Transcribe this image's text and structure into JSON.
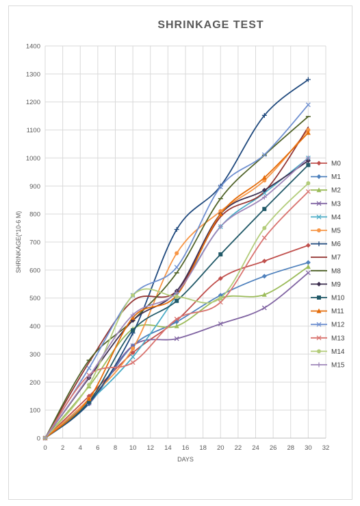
{
  "chart_data": {
    "type": "line",
    "title": "SHRINKAGE TEST",
    "xlabel": "DAYS",
    "ylabel": "SHRINKAGE(*10-6 M)",
    "xlim": [
      0,
      32
    ],
    "ylim": [
      0,
      1400
    ],
    "xticks": [
      0,
      2,
      4,
      6,
      8,
      10,
      12,
      14,
      16,
      18,
      20,
      22,
      24,
      26,
      28,
      30,
      32
    ],
    "yticks": [
      0,
      100,
      200,
      300,
      400,
      500,
      600,
      700,
      800,
      900,
      1000,
      1100,
      1200,
      1300,
      1400
    ],
    "grid": true,
    "smooth": true,
    "legend": "right",
    "x": [
      0,
      5,
      10,
      15,
      20,
      25,
      30
    ],
    "series": [
      {
        "name": "M0",
        "color": "#C0504D",
        "marker": "diamond",
        "values": [
          0,
          150,
          305,
          420,
          570,
          632,
          688
        ]
      },
      {
        "name": "M1",
        "color": "#4F81BD",
        "marker": "diamond",
        "values": [
          0,
          122,
          330,
          415,
          510,
          578,
          627
        ]
      },
      {
        "name": "M2",
        "color": "#9BBB59",
        "marker": "triangle",
        "values": [
          0,
          185,
          390,
          400,
          500,
          512,
          612
        ]
      },
      {
        "name": "M3",
        "color": "#8064A2",
        "marker": "x",
        "values": [
          0,
          125,
          330,
          355,
          408,
          465,
          590
        ]
      },
      {
        "name": "M4",
        "color": "#4BACC6",
        "marker": "x",
        "values": [
          0,
          130,
          290,
          510,
          755,
          875,
          1000
        ]
      },
      {
        "name": "M5",
        "color": "#F79646",
        "marker": "circle",
        "values": [
          0,
          140,
          320,
          660,
          810,
          920,
          1100
        ]
      },
      {
        "name": "M6",
        "color": "#1F497D",
        "marker": "plus",
        "values": [
          0,
          125,
          375,
          745,
          900,
          1152,
          1280
        ]
      },
      {
        "name": "M7",
        "color": "#943634",
        "marker": "none",
        "values": [
          0,
          270,
          490,
          525,
          790,
          880,
          1110
        ]
      },
      {
        "name": "M8",
        "color": "#4F6228",
        "marker": "dash",
        "values": [
          0,
          278,
          420,
          590,
          855,
          1010,
          1148
        ]
      },
      {
        "name": "M9",
        "color": "#3F3151",
        "marker": "diamond",
        "values": [
          0,
          215,
          420,
          525,
          800,
          885,
          990
        ]
      },
      {
        "name": "M10",
        "color": "#215968",
        "marker": "square",
        "values": [
          0,
          130,
          385,
          490,
          656,
          818,
          975
        ]
      },
      {
        "name": "M11",
        "color": "#E46C0A",
        "marker": "triangle",
        "values": [
          0,
          140,
          430,
          510,
          800,
          930,
          1090
        ]
      },
      {
        "name": "M12",
        "color": "#6E8FD0",
        "marker": "x",
        "values": [
          0,
          250,
          510,
          610,
          897,
          1012,
          1190
        ]
      },
      {
        "name": "M13",
        "color": "#D9736F",
        "marker": "x",
        "values": [
          0,
          225,
          270,
          425,
          485,
          715,
          880
        ]
      },
      {
        "name": "M14",
        "color": "#B3CC7A",
        "marker": "circle",
        "values": [
          0,
          190,
          510,
          505,
          500,
          750,
          910
        ]
      },
      {
        "name": "M15",
        "color": "#9E86B9",
        "marker": "plus",
        "values": [
          0,
          220,
          440,
          520,
          755,
          860,
          1000
        ]
      }
    ]
  }
}
